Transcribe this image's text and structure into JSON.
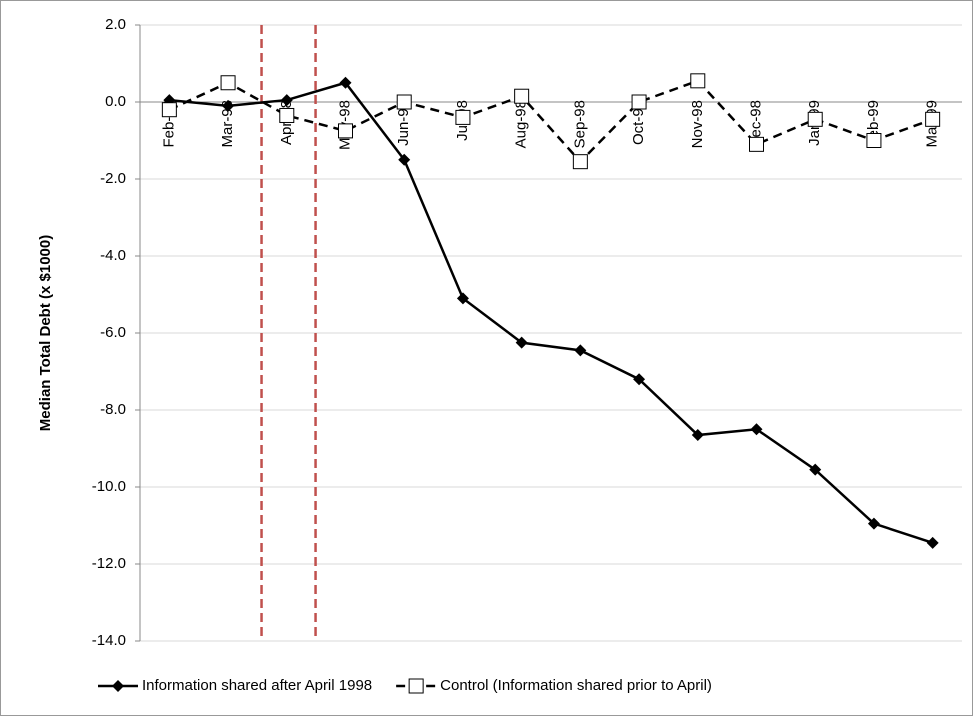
{
  "chart_data": {
    "type": "line",
    "y_label": "Median Total Debt (x $1000)",
    "categories": [
      "Feb-98",
      "Mar-98",
      "Apr-98",
      "May-98",
      "Jun-98",
      "Jul-98",
      "Aug-98",
      "Sep-98",
      "Oct-98",
      "Nov-98",
      "Dec-98",
      "Jan-99",
      "Feb-99",
      "Mar-99"
    ],
    "series": [
      {
        "name": "Information shared after April 1998",
        "color": "#000000",
        "dash": "solid",
        "marker": "diamond",
        "values": [
          0.05,
          -0.1,
          0.05,
          0.5,
          -1.5,
          -5.1,
          -6.25,
          -6.45,
          -7.2,
          -8.65,
          -8.5,
          -9.55,
          -10.95,
          -11.45
        ]
      },
      {
        "name": "Control (Information shared prior to April)",
        "color": "#000000",
        "dash": "dashed",
        "marker": "square",
        "values": [
          -0.2,
          0.5,
          -0.35,
          -0.75,
          0.0,
          -0.4,
          0.15,
          -1.55,
          0.0,
          0.55,
          -1.1,
          -0.45,
          -1.0,
          -0.45
        ]
      }
    ],
    "ylim": [
      -14,
      2
    ],
    "yticks": [
      {
        "value": -14,
        "label": "-14.0"
      },
      {
        "value": -12,
        "label": "-12.0"
      },
      {
        "value": -10,
        "label": "-10.0"
      },
      {
        "value": -8,
        "label": "-8.0"
      },
      {
        "value": -6,
        "label": "-6.0"
      },
      {
        "value": -4,
        "label": "-4.0"
      },
      {
        "value": -2,
        "label": "-2.0"
      },
      {
        "value": 0,
        "label": "0.0"
      },
      {
        "value": 2,
        "label": "2.0"
      }
    ],
    "grid": true,
    "legend": "bottom"
  }
}
